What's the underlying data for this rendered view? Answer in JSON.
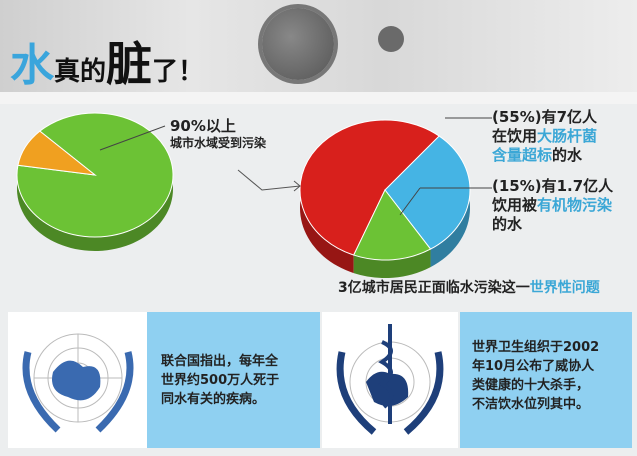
{
  "header": {
    "title_1": "水",
    "title_2": "真的",
    "title_3": "脏",
    "title_4": "了！"
  },
  "left_label": {
    "line1": "90%以上",
    "line2": "城市水域受到污染"
  },
  "right_labels": {
    "a_line1": "(55%)有7亿人",
    "a_line2_pre": "在饮用",
    "a_line2_hl": "大肠杆菌",
    "a_line3_hl": "含量超标",
    "a_line3_post": "的水",
    "b_line1": "(15%)有1.7亿人",
    "b_line2_pre": "饮用被",
    "b_line2_hl": "有机物污染",
    "b_line3": "的水"
  },
  "caption": {
    "pre": "3亿城市居民正面临水污染这一",
    "hl": "世界性问题"
  },
  "panels": {
    "un": {
      "icon": "un-emblem-icon",
      "text": [
        "联合国指出，每年全",
        "世界约500万人死于",
        "同水有关的疾病。"
      ]
    },
    "who": {
      "icon": "who-emblem-icon",
      "text": [
        "世界卫生组织于2002",
        "年10月公布了威协人",
        "类健康的十大杀手，",
        "不洁饮水位列其中。"
      ]
    }
  },
  "colors": {
    "accent": "#3ba7d6",
    "green": "#6cc235",
    "orange": "#f0a020",
    "red": "#d8201c",
    "blue": "#45b4e4",
    "panel_blue": "#8fd0f1"
  },
  "chart_data": [
    {
      "type": "pie",
      "slices": [
        {
          "label": "90%以上",
          "value": 90,
          "color": "#6cc235"
        },
        {
          "value": 10,
          "color": "#f0a020"
        }
      ]
    },
    {
      "type": "pie",
      "slices": [
        {
          "label": "(55%)",
          "value": 55,
          "color": "#d8201c"
        },
        {
          "value": 30,
          "color": "#45b4e4"
        },
        {
          "label": "(15%)",
          "value": 15,
          "color": "#6cc235"
        }
      ]
    }
  ]
}
